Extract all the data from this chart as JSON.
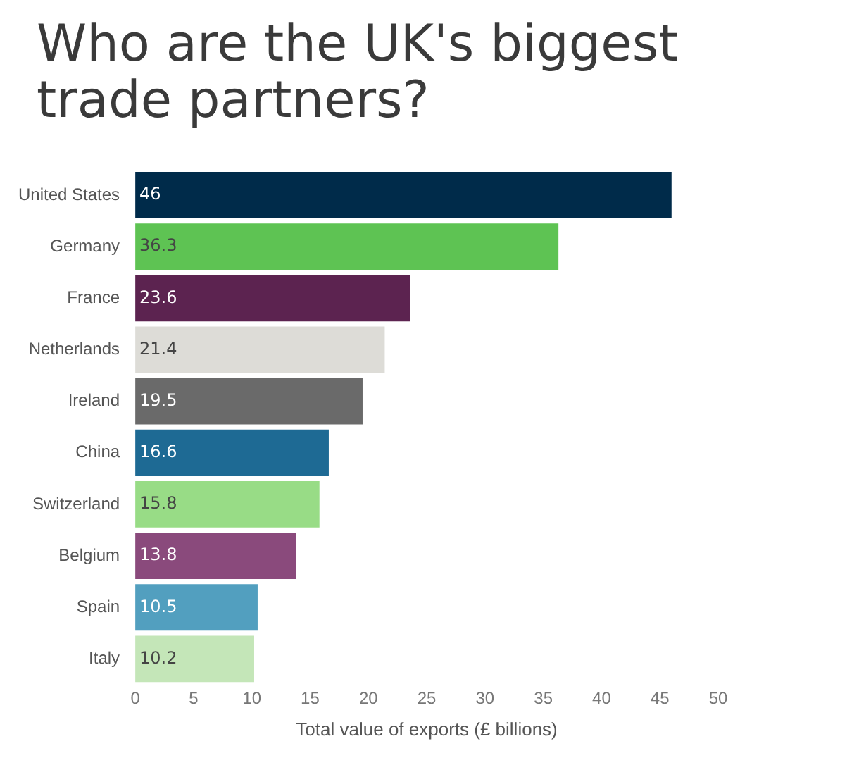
{
  "chart_data": {
    "type": "bar",
    "orientation": "horizontal",
    "title": "Who are the UK's biggest trade partners?",
    "xlabel": "Total value of exports (£ billions)",
    "categories": [
      "United States",
      "Germany",
      "France",
      "Netherlands",
      "Ireland",
      "China",
      "Switzerland",
      "Belgium",
      "Spain",
      "Italy"
    ],
    "values": [
      46,
      36.3,
      23.6,
      21.4,
      19.5,
      16.6,
      15.8,
      13.8,
      10.5,
      10.2
    ],
    "colors": [
      "#002b4a",
      "#5ec353",
      "#5c2350",
      "#dddcd7",
      "#6a6a6a",
      "#1e6a94",
      "#98dc86",
      "#8a4a7c",
      "#529fbf",
      "#c4e6b8"
    ],
    "xlim": [
      0,
      50
    ],
    "xticks": [
      0,
      5,
      10,
      15,
      20,
      25,
      30,
      35,
      40,
      45,
      50
    ],
    "data_labels": true,
    "grid": false,
    "legend": false
  }
}
